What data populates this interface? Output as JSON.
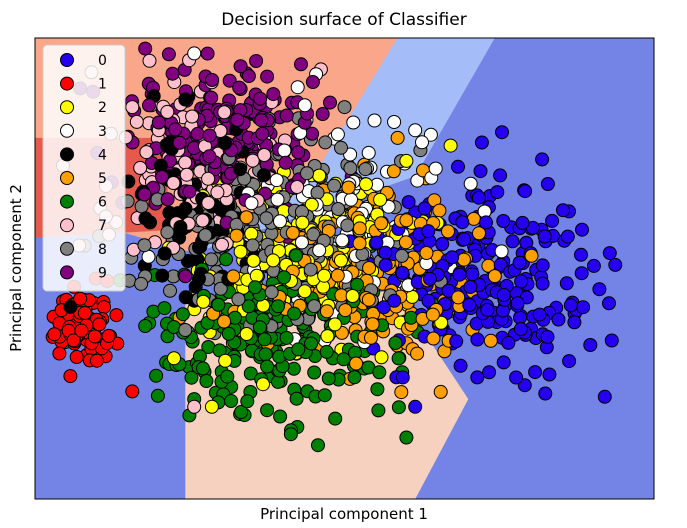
{
  "chart_data": {
    "type": "scatter",
    "title": "Decision surface of Classifier",
    "xlabel": "Principal component 1",
    "ylabel": "Principal component 2",
    "xlim": [
      -30,
      40
    ],
    "ylim": [
      -30,
      30
    ],
    "xticks": [],
    "yticks": [],
    "legend": {
      "placement": "top-left"
    },
    "region_colors": {
      "blue": "#7384e6",
      "light-blue": "#a4bdf9",
      "salmon": "#f9a68a",
      "red": "#e65a4e",
      "peach": "#f6d1c0"
    },
    "regions": [
      {
        "color": "blue",
        "points": [
          [
            -30,
            -30
          ],
          [
            40,
            -30
          ],
          [
            40,
            30
          ],
          [
            -30,
            30
          ]
        ]
      },
      {
        "color": "light-blue",
        "points": [
          [
            11,
            30
          ],
          [
            22,
            30
          ],
          [
            13,
            12
          ],
          [
            -12,
            2
          ],
          [
            -20,
            10
          ]
        ]
      },
      {
        "color": "salmon",
        "points": [
          [
            -30,
            30
          ],
          [
            11,
            30
          ],
          [
            2,
            13
          ],
          [
            -12,
            2
          ],
          [
            -30,
            8
          ]
        ]
      },
      {
        "color": "red",
        "points": [
          [
            -30,
            17
          ],
          [
            -15,
            17
          ],
          [
            -15,
            5
          ],
          [
            -30,
            4
          ]
        ]
      },
      {
        "color": "peach",
        "points": [
          [
            -13,
            -4
          ],
          [
            10,
            -3
          ],
          [
            15,
            -10
          ],
          [
            19,
            -17
          ],
          [
            13,
            -30
          ],
          [
            -13,
            -30
          ]
        ]
      }
    ],
    "series": [
      {
        "name": "0",
        "color": "#2500f0",
        "cx": 20.5,
        "cy": -1,
        "sx": 6,
        "sy": 6,
        "n": 230,
        "seed": 11,
        "points": [
          [
            28,
            11
          ],
          [
            21,
            6
          ],
          [
            13,
            -18
          ],
          [
            31,
            -7
          ],
          [
            35,
            2
          ]
        ]
      },
      {
        "name": "1",
        "color": "#ff0000",
        "cx": -24.5,
        "cy": -6.5,
        "sx": 1.6,
        "sy": 2.2,
        "n": 90,
        "seed": 12,
        "points": [
          [
            -26,
            -14
          ],
          [
            -23,
            -12
          ],
          [
            -19,
            -16
          ]
        ]
      },
      {
        "name": "2",
        "color": "#ffff00",
        "cx": 0,
        "cy": 1,
        "sx": 6,
        "sy": 6,
        "n": 180,
        "seed": 13,
        "points": [
          [
            12,
            14
          ],
          [
            17,
            16
          ],
          [
            -10,
            -18
          ]
        ]
      },
      {
        "name": "3",
        "color": "#ffffff",
        "cx": 4,
        "cy": 7,
        "sx": 7,
        "sy": 6,
        "n": 120,
        "seed": 14,
        "points": [
          [
            -12,
            28
          ],
          [
            13,
            18
          ],
          [
            6,
            19
          ]
        ]
      },
      {
        "name": "4",
        "color": "#000000",
        "cx": -12,
        "cy": 8,
        "sx": 4,
        "sy": 6,
        "n": 90,
        "seed": 15,
        "points": [
          [
            -17,
            6
          ],
          [
            -26,
            -5
          ],
          [
            -13,
            22
          ]
        ]
      },
      {
        "name": "5",
        "color": "#ffa000",
        "cx": 8,
        "cy": -1,
        "sx": 7,
        "sy": 6,
        "n": 200,
        "seed": 16,
        "points": [
          [
            11,
            17
          ],
          [
            8,
            -9
          ],
          [
            15,
            -6
          ]
        ]
      },
      {
        "name": "6",
        "color": "#008000",
        "cx": -3,
        "cy": -9,
        "sx": 7,
        "sy": 5,
        "n": 220,
        "seed": 17,
        "points": [
          [
            -12,
            -17
          ],
          [
            -11,
            -13
          ],
          [
            2,
            -23
          ],
          [
            12,
            -22
          ]
        ]
      },
      {
        "name": "7",
        "color": "#ffc0cb",
        "cx": -12,
        "cy": 13,
        "sx": 5,
        "sy": 6,
        "n": 110,
        "seed": 18,
        "points": [
          [
            -16,
            18
          ],
          [
            -12,
            -18
          ],
          [
            -25,
            3
          ],
          [
            -19,
            21
          ]
        ]
      },
      {
        "name": "8",
        "color": "#808080",
        "cx": -3,
        "cy": 4,
        "sx": 7,
        "sy": 6,
        "n": 200,
        "seed": 19,
        "points": [
          [
            -18,
            -2
          ],
          [
            -13,
            -8
          ],
          [
            -7,
            -4
          ],
          [
            5,
            21
          ]
        ]
      },
      {
        "name": "9",
        "color": "#800080",
        "cx": -9,
        "cy": 17,
        "sx": 5,
        "sy": 5,
        "n": 200,
        "seed": 20,
        "points": [
          [
            -16,
            19
          ],
          [
            -15,
            9
          ],
          [
            -13,
            -1
          ],
          [
            -5,
            27
          ]
        ]
      }
    ]
  }
}
